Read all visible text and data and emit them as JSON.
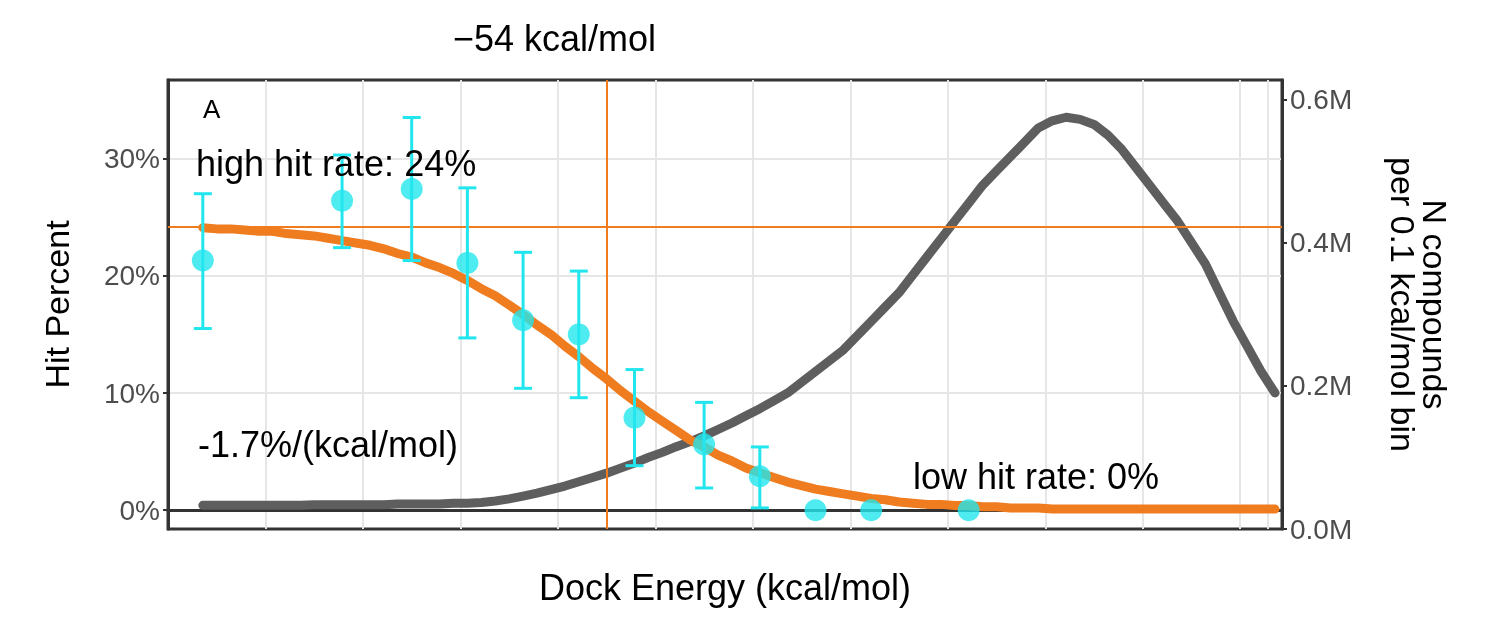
{
  "chart_data": {
    "type": "line",
    "xlabel": "Dock Energy (kcal/mol)",
    "ylabel": "Hit Percent",
    "y2label": "N compounds\nper 0.1 kcal/mol bin",
    "categories": [
      null,
      null,
      null,
      null,
      null,
      null,
      null,
      null,
      null,
      null,
      null,
      null,
      null,
      null,
      null,
      null,
      null,
      null,
      null,
      null,
      null,
      null,
      null,
      null,
      null,
      null,
      null,
      null,
      null,
      null,
      null,
      null,
      null,
      null,
      null,
      null,
      null,
      null,
      null,
      null,
      null,
      null,
      null,
      null,
      null,
      null,
      null,
      null,
      null,
      null,
      null,
      null,
      null,
      null,
      null,
      null,
      null,
      null,
      null,
      null,
      null,
      null,
      null,
      null,
      null,
      null,
      null,
      null,
      null,
      null,
      null,
      null,
      null,
      null,
      null,
      null,
      null,
      null,
      null,
      null
    ],
    "series": [
      {
        "type": "line",
        "axis": "y2",
        "color": "#5e5e5e",
        "marker": "none",
        "values": [
          null,
          null,
          0.033,
          0.033,
          0.033,
          0.033,
          0.033,
          0.033,
          0.033,
          0.033,
          0.034,
          0.034,
          0.034,
          0.034,
          0.034,
          0.034,
          0.035,
          0.035,
          0.035,
          0.035,
          0.036,
          0.036,
          0.037,
          0.039,
          0.042,
          0.046,
          0.05,
          0.055,
          0.06,
          0.066,
          0.072,
          0.078,
          0.085,
          0.092,
          0.1,
          0.107,
          0.115,
          0.122,
          0.13,
          0.139,
          0.148,
          0.158,
          0.168,
          0.179,
          0.19,
          0.205,
          0.22,
          0.235,
          0.25,
          0.27,
          0.29,
          0.31,
          0.33,
          0.355,
          0.38,
          0.405,
          0.43,
          0.455,
          0.48,
          0.5,
          0.52,
          0.54,
          0.56,
          0.57,
          0.575,
          0.572,
          0.565,
          0.55,
          0.53,
          0.505,
          0.48,
          0.455,
          0.43,
          0.4,
          0.37,
          0.33,
          0.29,
          0.255,
          0.22,
          0.19
        ]
      },
      {
        "color": "#f07c20",
        "marker": "none",
        "values": [
          null,
          null,
          24.1,
          24.0,
          24.0,
          23.9,
          23.8,
          23.8,
          23.6,
          23.5,
          23.4,
          23.2,
          23.0,
          22.8,
          22.6,
          22.3,
          21.9,
          21.6,
          21.1,
          20.7,
          20.2,
          19.6,
          18.9,
          18.3,
          17.5,
          16.7,
          15.8,
          15.0,
          14.0,
          13.1,
          12.1,
          11.2,
          10.2,
          9.3,
          8.4,
          7.6,
          6.8,
          6.0,
          5.4,
          4.7,
          4.2,
          3.6,
          3.2,
          2.8,
          2.4,
          2.1,
          1.8,
          1.6,
          1.4,
          1.2,
          1.0,
          0.9,
          0.7,
          0.6,
          0.5,
          0.5,
          0.4,
          0.4,
          0.3,
          0.3,
          0.2,
          0.2,
          0.2,
          0.1,
          0.1,
          0.1,
          0.1,
          0.1,
          0.1,
          0.1,
          0.1,
          0.1,
          0.1,
          0.1,
          0.1,
          0.1,
          0.1,
          0.1,
          0.1,
          0.1
        ]
      },
      {
        "type": "scatter",
        "color": "#22e6ee",
        "marker": "circle",
        "values": [
          null,
          null,
          21.3,
          null,
          null,
          null,
          null,
          null,
          null,
          null,
          null,
          null,
          26.4,
          null,
          null,
          null,
          null,
          27.4,
          null,
          null,
          null,
          21.1,
          null,
          null,
          null,
          16.2,
          null,
          null,
          null,
          15.0,
          null,
          null,
          null,
          7.9,
          null,
          null,
          null,
          null,
          5.6,
          null,
          null,
          null,
          2.9,
          null,
          null,
          null,
          0,
          null,
          null,
          null,
          0,
          null,
          null,
          null,
          null,
          null,
          null,
          0,
          null,
          null,
          null,
          null,
          null,
          null,
          null,
          null,
          null,
          null,
          null,
          null,
          null,
          null,
          null,
          null,
          null,
          null,
          null,
          null,
          null,
          null
        ],
        "errors": [
          null,
          null,
          [
            15.5,
            27.0
          ],
          null,
          null,
          null,
          null,
          null,
          null,
          null,
          null,
          null,
          [
            22.4,
            30.3
          ],
          null,
          null,
          null,
          null,
          [
            21.3,
            33.5
          ],
          null,
          null,
          null,
          [
            14.7,
            27.5
          ],
          null,
          null,
          null,
          [
            10.4,
            22.0
          ],
          null,
          null,
          null,
          [
            9.6,
            20.4
          ],
          null,
          null,
          null,
          [
            3.8,
            12.0
          ],
          null,
          null,
          null,
          null,
          [
            1.9,
            9.2
          ],
          null,
          null,
          null,
          [
            0.2,
            5.4
          ],
          null,
          null,
          null,
          null,
          null,
          null,
          null,
          null,
          null,
          null,
          null,
          null,
          null,
          null,
          null,
          null,
          null,
          null,
          null,
          null,
          null,
          null,
          null,
          null,
          null,
          null,
          null,
          null,
          null,
          null,
          null,
          null,
          null,
          null,
          null,
          null,
          null
        ]
      }
    ],
    "ylim": [
      -1.6,
      36.7
    ],
    "yticks": [
      {
        "value": 0,
        "label": "0%"
      },
      {
        "value": 10,
        "label": "10%"
      },
      {
        "value": 20,
        "label": "20%"
      },
      {
        "value": 30,
        "label": "30%"
      }
    ],
    "y2lim": [
      0,
      0.627
    ],
    "y2ticks": [
      {
        "value": 0,
        "label": "0.0M"
      },
      {
        "value": 0.2,
        "label": "0.2M"
      },
      {
        "value": 0.4,
        "label": "0.4M"
      },
      {
        "value": 0.6,
        "label": "0.6M"
      }
    ],
    "ref_lines": [
      {
        "axis": "y",
        "value": 24.2,
        "color": "#f07c20"
      }
    ],
    "annotations": [
      "A",
      "high hit rate: 24%",
      "-1.7%/(kcal/mol)",
      "low hit rate: 0%",
      "−54 kcal/mol"
    ],
    "grid": true,
    "tick_labels": "y"
  }
}
